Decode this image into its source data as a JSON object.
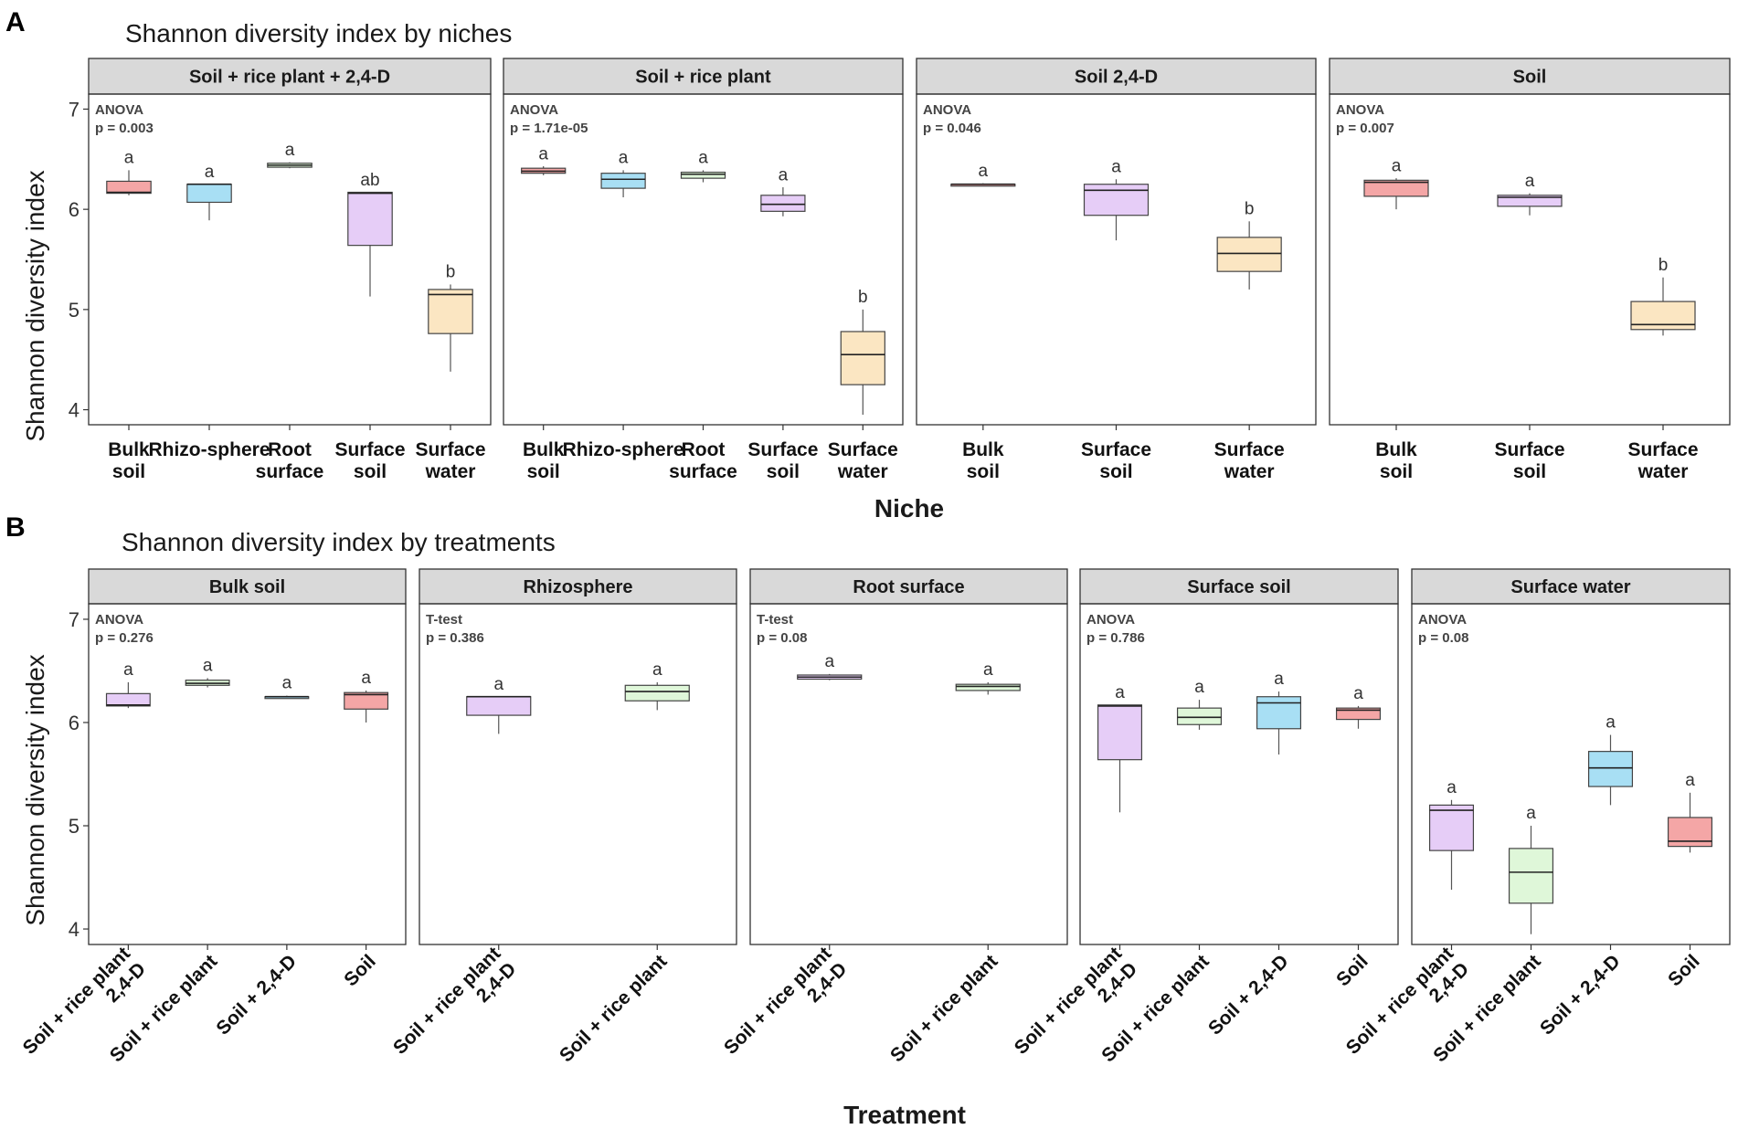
{
  "panel_labels": {
    "a": "A",
    "b": "B"
  },
  "colors": {
    "Bulk soil": "#f4a6a6",
    "Rhizo-sphere": "#a8dff4",
    "Root surface": "#dff7d9",
    "Surface soil": "#e6cdf7",
    "Surface water": "#fbe6c2",
    "Soil + rice plant 2,4-D": "#e6cdf7",
    "Soil + rice plant": "#dff7d9",
    "Soil + 2,4-D": "#a8dff4",
    "Soil": "#f4a6a6"
  },
  "chart_data": [
    {
      "type": "box",
      "title": "Shannon diversity index by niches",
      "xlabel": "Niche",
      "ylabel": "Shannon diversity index",
      "ylim": [
        3.85,
        7.15
      ],
      "yticks": [
        4,
        5,
        6,
        7
      ],
      "facets": [
        {
          "strip": "Soil + rice plant + 2,4-D",
          "test": "ANOVA",
          "pvalue": "p = 0.003",
          "categories": [
            "Bulk soil",
            "Rhizo-sphere",
            "Root surface",
            "Surface soil",
            "Surface water"
          ],
          "boxes": [
            {
              "min": 6.14,
              "q1": 6.16,
              "median": 6.17,
              "q3": 6.28,
              "max": 6.39,
              "label": "a",
              "label_y": 6.46
            },
            {
              "min": 5.89,
              "q1": 6.07,
              "median": 6.25,
              "q3": 6.25,
              "max": 6.25,
              "label": "a",
              "label_y": 6.32
            },
            {
              "min": 6.41,
              "q1": 6.42,
              "median": 6.44,
              "q3": 6.46,
              "max": 6.47,
              "label": "a",
              "label_y": 6.54
            },
            {
              "min": 5.13,
              "q1": 5.64,
              "median": 6.16,
              "q3": 6.17,
              "max": 6.17,
              "label": "ab",
              "label_y": 6.24
            },
            {
              "min": 4.38,
              "q1": 4.76,
              "median": 5.15,
              "q3": 5.2,
              "max": 5.25,
              "label": "b",
              "label_y": 5.32
            }
          ]
        },
        {
          "strip": "Soil + rice plant",
          "test": "ANOVA",
          "pvalue": "p = 1.71e-05",
          "categories": [
            "Bulk soil",
            "Rhizo-sphere",
            "Root surface",
            "Surface soil",
            "Surface water"
          ],
          "boxes": [
            {
              "min": 6.34,
              "q1": 6.36,
              "median": 6.38,
              "q3": 6.41,
              "max": 6.43,
              "label": "a",
              "label_y": 6.5
            },
            {
              "min": 6.12,
              "q1": 6.21,
              "median": 6.3,
              "q3": 6.36,
              "max": 6.39,
              "label": "a",
              "label_y": 6.46
            },
            {
              "min": 6.27,
              "q1": 6.31,
              "median": 6.35,
              "q3": 6.37,
              "max": 6.39,
              "label": "a",
              "label_y": 6.46
            },
            {
              "min": 5.93,
              "q1": 5.98,
              "median": 6.05,
              "q3": 6.14,
              "max": 6.22,
              "label": "a",
              "label_y": 6.29
            },
            {
              "min": 3.95,
              "q1": 4.25,
              "median": 4.55,
              "q3": 4.78,
              "max": 5.0,
              "label": "b",
              "label_y": 5.07
            }
          ]
        },
        {
          "strip": "Soil 2,4-D",
          "test": "ANOVA",
          "pvalue": "p = 0.046",
          "categories": [
            "Bulk soil",
            "Surface soil",
            "Surface water"
          ],
          "boxes": [
            {
              "min": 6.24,
              "q1": 6.24,
              "median": 6.25,
              "q3": 6.25,
              "max": 6.26,
              "label": "a",
              "label_y": 6.33
            },
            {
              "min": 5.69,
              "q1": 5.94,
              "median": 6.19,
              "q3": 6.25,
              "max": 6.3,
              "label": "a",
              "label_y": 6.37
            },
            {
              "min": 5.2,
              "q1": 5.38,
              "median": 5.56,
              "q3": 5.72,
              "max": 5.88,
              "label": "b",
              "label_y": 5.95
            }
          ]
        },
        {
          "strip": "Soil",
          "test": "ANOVA",
          "pvalue": "p = 0.007",
          "categories": [
            "Bulk soil",
            "Surface soil",
            "Surface water"
          ],
          "boxes": [
            {
              "min": 6.0,
              "q1": 6.13,
              "median": 6.27,
              "q3": 6.29,
              "max": 6.31,
              "label": "a",
              "label_y": 6.38
            },
            {
              "min": 5.94,
              "q1": 6.03,
              "median": 6.12,
              "q3": 6.14,
              "max": 6.16,
              "label": "a",
              "label_y": 6.23
            },
            {
              "min": 4.74,
              "q1": 4.8,
              "median": 4.85,
              "q3": 5.08,
              "max": 5.32,
              "label": "b",
              "label_y": 5.39
            }
          ]
        }
      ]
    },
    {
      "type": "box",
      "title": "Shannon diversity index by treatments",
      "xlabel": "Treatment",
      "ylabel": "Shannon diversity index",
      "ylim": [
        3.85,
        7.15
      ],
      "yticks": [
        4,
        5,
        6,
        7
      ],
      "facets": [
        {
          "strip": "Bulk soil",
          "test": "ANOVA",
          "pvalue": "p = 0.276",
          "categories": [
            "Soil + rice plant 2,4-D",
            "Soil + rice plant",
            "Soil + 2,4-D",
            "Soil"
          ],
          "boxes": [
            {
              "min": 6.14,
              "q1": 6.16,
              "median": 6.17,
              "q3": 6.28,
              "max": 6.39,
              "label": "a",
              "label_y": 6.46
            },
            {
              "min": 6.34,
              "q1": 6.36,
              "median": 6.38,
              "q3": 6.41,
              "max": 6.43,
              "label": "a",
              "label_y": 6.5
            },
            {
              "min": 6.24,
              "q1": 6.24,
              "median": 6.25,
              "q3": 6.25,
              "max": 6.26,
              "label": "a",
              "label_y": 6.33
            },
            {
              "min": 6.0,
              "q1": 6.13,
              "median": 6.27,
              "q3": 6.29,
              "max": 6.31,
              "label": "a",
              "label_y": 6.38
            }
          ]
        },
        {
          "strip": "Rhizosphere",
          "test": "T-test",
          "pvalue": "p = 0.386",
          "categories": [
            "Soil + rice plant 2,4-D",
            "Soil + rice plant"
          ],
          "boxes": [
            {
              "min": 5.89,
              "q1": 6.07,
              "median": 6.25,
              "q3": 6.25,
              "max": 6.25,
              "label": "a",
              "label_y": 6.32
            },
            {
              "min": 6.12,
              "q1": 6.21,
              "median": 6.3,
              "q3": 6.36,
              "max": 6.39,
              "label": "a",
              "label_y": 6.46
            }
          ]
        },
        {
          "strip": "Root surface",
          "test": "T-test",
          "pvalue": "p = 0.08",
          "categories": [
            "Soil + rice plant 2,4-D",
            "Soil + rice plant"
          ],
          "boxes": [
            {
              "min": 6.41,
              "q1": 6.42,
              "median": 6.44,
              "q3": 6.46,
              "max": 6.47,
              "label": "a",
              "label_y": 6.54
            },
            {
              "min": 6.27,
              "q1": 6.31,
              "median": 6.35,
              "q3": 6.37,
              "max": 6.39,
              "label": "a",
              "label_y": 6.46
            }
          ]
        },
        {
          "strip": "Surface soil",
          "test": "ANOVA",
          "pvalue": "p = 0.786",
          "categories": [
            "Soil + rice plant 2,4-D",
            "Soil + rice plant",
            "Soil + 2,4-D",
            "Soil"
          ],
          "boxes": [
            {
              "min": 5.13,
              "q1": 5.64,
              "median": 6.16,
              "q3": 6.17,
              "max": 6.17,
              "label": "a",
              "label_y": 6.24
            },
            {
              "min": 5.93,
              "q1": 5.98,
              "median": 6.05,
              "q3": 6.14,
              "max": 6.22,
              "label": "a",
              "label_y": 6.29
            },
            {
              "min": 5.69,
              "q1": 5.94,
              "median": 6.19,
              "q3": 6.25,
              "max": 6.3,
              "label": "a",
              "label_y": 6.37
            },
            {
              "min": 5.94,
              "q1": 6.03,
              "median": 6.12,
              "q3": 6.14,
              "max": 6.16,
              "label": "a",
              "label_y": 6.23
            }
          ]
        },
        {
          "strip": "Surface water",
          "test": "ANOVA",
          "pvalue": "p = 0.08",
          "categories": [
            "Soil + rice plant 2,4-D",
            "Soil + rice plant",
            "Soil + 2,4-D",
            "Soil"
          ],
          "boxes": [
            {
              "min": 4.38,
              "q1": 4.76,
              "median": 5.15,
              "q3": 5.2,
              "max": 5.25,
              "label": "a",
              "label_y": 5.32
            },
            {
              "min": 3.95,
              "q1": 4.25,
              "median": 4.55,
              "q3": 4.78,
              "max": 5.0,
              "label": "a",
              "label_y": 5.07
            },
            {
              "min": 5.2,
              "q1": 5.38,
              "median": 5.56,
              "q3": 5.72,
              "max": 5.88,
              "label": "a",
              "label_y": 5.95
            },
            {
              "min": 4.74,
              "q1": 4.8,
              "median": 4.85,
              "q3": 5.08,
              "max": 5.32,
              "label": "a",
              "label_y": 5.39
            }
          ]
        }
      ]
    }
  ]
}
